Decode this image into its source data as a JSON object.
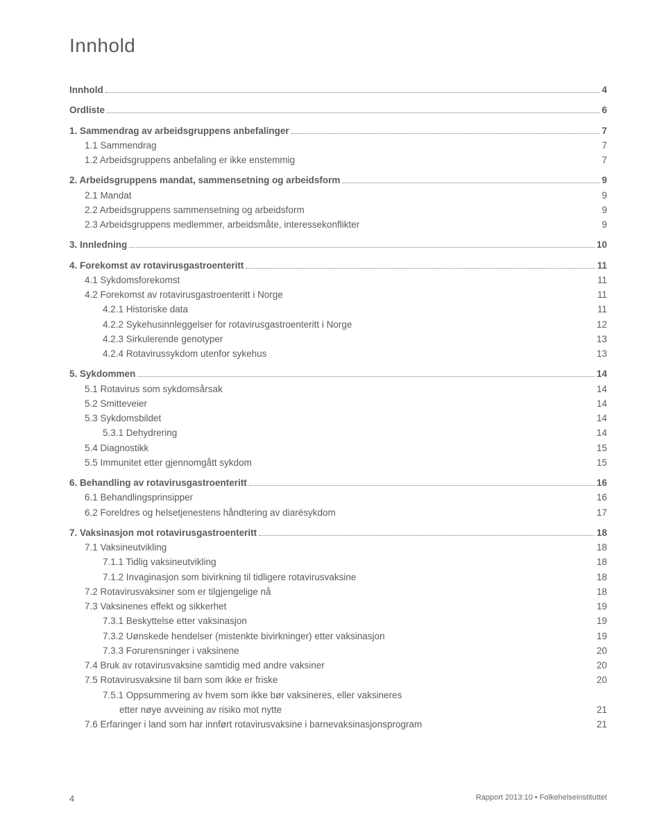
{
  "title": "Innhold",
  "entries": [
    {
      "label": "Innhold",
      "page": "4",
      "level": 0,
      "bold": true,
      "leader": true,
      "gap": false
    },
    {
      "label": "Ordliste",
      "page": "6",
      "level": 0,
      "bold": true,
      "leader": true,
      "gap": true
    },
    {
      "label": "1. Sammendrag av arbeidsgruppens anbefalinger",
      "page": "7",
      "level": 0,
      "bold": true,
      "leader": true,
      "gap": true
    },
    {
      "label": "1.1  Sammendrag",
      "page": "7",
      "level": 1,
      "bold": false,
      "leader": false,
      "gap": false
    },
    {
      "label": "1.2  Arbeidsgruppens anbefaling er ikke enstemmig",
      "page": "7",
      "level": 1,
      "bold": false,
      "leader": false,
      "gap": false
    },
    {
      "label": "2. Arbeidsgruppens mandat, sammensetning og arbeidsform",
      "page": "9",
      "level": 0,
      "bold": true,
      "leader": true,
      "gap": true
    },
    {
      "label": "2.1  Mandat",
      "page": "9",
      "level": 1,
      "bold": false,
      "leader": false,
      "gap": false
    },
    {
      "label": "2.2  Arbeidsgruppens sammensetning og arbeidsform",
      "page": "9",
      "level": 1,
      "bold": false,
      "leader": false,
      "gap": false
    },
    {
      "label": "2.3  Arbeidsgruppens medlemmer, arbeidsmåte, interessekonflikter",
      "page": "9",
      "level": 1,
      "bold": false,
      "leader": false,
      "gap": false
    },
    {
      "label": "3. Innledning",
      "page": " 10",
      "level": 0,
      "bold": true,
      "leader": true,
      "gap": true
    },
    {
      "label": "4. Forekomst av rotavirusgastroenteritt ",
      "page": " 11",
      "level": 0,
      "bold": true,
      "leader": true,
      "gap": true
    },
    {
      "label": "4.1  Sykdomsforekomst",
      "page": "11",
      "level": 1,
      "bold": false,
      "leader": false,
      "gap": false
    },
    {
      "label": "4.2  Forekomst av rotavirusgastroenteritt i Norge",
      "page": "11",
      "level": 1,
      "bold": false,
      "leader": false,
      "gap": false
    },
    {
      "label": "4.2.1 Historiske data",
      "page": "11",
      "level": 2,
      "bold": false,
      "leader": false,
      "gap": false
    },
    {
      "label": "4.2.2 Sykehusinnleggelser for rotavirusgastroenteritt i Norge",
      "page": "12",
      "level": 2,
      "bold": false,
      "leader": false,
      "gap": false
    },
    {
      "label": "4.2.3 Sirkulerende genotyper",
      "page": "13",
      "level": 2,
      "bold": false,
      "leader": false,
      "gap": false
    },
    {
      "label": "4.2.4 Rotavirussykdom utenfor sykehus",
      "page": "13",
      "level": 2,
      "bold": false,
      "leader": false,
      "gap": false
    },
    {
      "label": "5. Sykdommen",
      "page": " 14",
      "level": 0,
      "bold": true,
      "leader": true,
      "gap": true
    },
    {
      "label": "5.1  Rotavirus som sykdomsårsak",
      "page": "14",
      "level": 1,
      "bold": false,
      "leader": false,
      "gap": false
    },
    {
      "label": "5.2  Smitteveier",
      "page": "14",
      "level": 1,
      "bold": false,
      "leader": false,
      "gap": false
    },
    {
      "label": "5.3  Sykdomsbildet",
      "page": "14",
      "level": 1,
      "bold": false,
      "leader": false,
      "gap": false
    },
    {
      "label": "5.3.1 Dehydrering",
      "page": "14",
      "level": 2,
      "bold": false,
      "leader": false,
      "gap": false
    },
    {
      "label": "5.4  Diagnostikk",
      "page": "15",
      "level": 1,
      "bold": false,
      "leader": false,
      "gap": false
    },
    {
      "label": "5.5  Immunitet etter gjennomgått sykdom",
      "page": "15",
      "level": 1,
      "bold": false,
      "leader": false,
      "gap": false
    },
    {
      "label": "6. Behandling av rotavirusgastroenteritt",
      "page": " 16",
      "level": 0,
      "bold": true,
      "leader": true,
      "gap": true
    },
    {
      "label": "6.1  Behandlingsprinsipper",
      "page": "16",
      "level": 1,
      "bold": false,
      "leader": false,
      "gap": false
    },
    {
      "label": "6.2  Foreldres og helsetjenestens håndtering av diarésykdom",
      "page": "17",
      "level": 1,
      "bold": false,
      "leader": false,
      "gap": false
    },
    {
      "label": "7. Vaksinasjon mot rotavirusgastroenteritt",
      "page": " 18",
      "level": 0,
      "bold": true,
      "leader": true,
      "gap": true
    },
    {
      "label": "7.1  Vaksineutvikling",
      "page": "18",
      "level": 1,
      "bold": false,
      "leader": false,
      "gap": false
    },
    {
      "label": "7.1.1 Tidlig vaksineutvikling",
      "page": "18",
      "level": 2,
      "bold": false,
      "leader": false,
      "gap": false
    },
    {
      "label": "7.1.2 Invaginasjon som bivirkning til tidligere rotavirusvaksine",
      "page": "18",
      "level": 2,
      "bold": false,
      "leader": false,
      "gap": false
    },
    {
      "label": "7.2  Rotavirusvaksiner som er tilgjengelige nå",
      "page": "18",
      "level": 1,
      "bold": false,
      "leader": false,
      "gap": false
    },
    {
      "label": "7.3  Vaksinenes effekt og sikkerhet",
      "page": "19",
      "level": 1,
      "bold": false,
      "leader": false,
      "gap": false
    },
    {
      "label": "7.3.1 Beskyttelse etter vaksinasjon",
      "page": "19",
      "level": 2,
      "bold": false,
      "leader": false,
      "gap": false
    },
    {
      "label": "7.3.2 Uønskede hendelser (mistenkte bivirkninger) etter vaksinasjon",
      "page": "19",
      "level": 2,
      "bold": false,
      "leader": false,
      "gap": false
    },
    {
      "label": "7.3.3 Forurensninger i vaksinene",
      "page": "20",
      "level": 2,
      "bold": false,
      "leader": false,
      "gap": false
    },
    {
      "label": "7.4  Bruk av rotavirusvaksine samtidig med andre vaksiner",
      "page": "20",
      "level": 1,
      "bold": false,
      "leader": false,
      "gap": false
    },
    {
      "label": "7.5  Rotavirusvaksine til barn som ikke er friske",
      "page": "20",
      "level": 1,
      "bold": false,
      "leader": false,
      "gap": false
    },
    {
      "label": "7.5.1 Oppsummering av hvem som ikke bør vaksineres, eller vaksineres",
      "page": "",
      "level": 2,
      "bold": false,
      "leader": false,
      "gap": false
    },
    {
      "label": "etter nøye avveining av risiko mot nytte",
      "page": "21",
      "level": 3,
      "bold": false,
      "leader": false,
      "gap": false
    },
    {
      "label": "7.6  Erfaringer i land som har innført rotavirusvaksine i barnevaksinasjonsprogram",
      "page": "21",
      "level": 1,
      "bold": false,
      "leader": false,
      "gap": false
    }
  ],
  "footer": {
    "page_number": "4",
    "right": "Rapport 2013:10 • Folkehelseinstituttet"
  }
}
